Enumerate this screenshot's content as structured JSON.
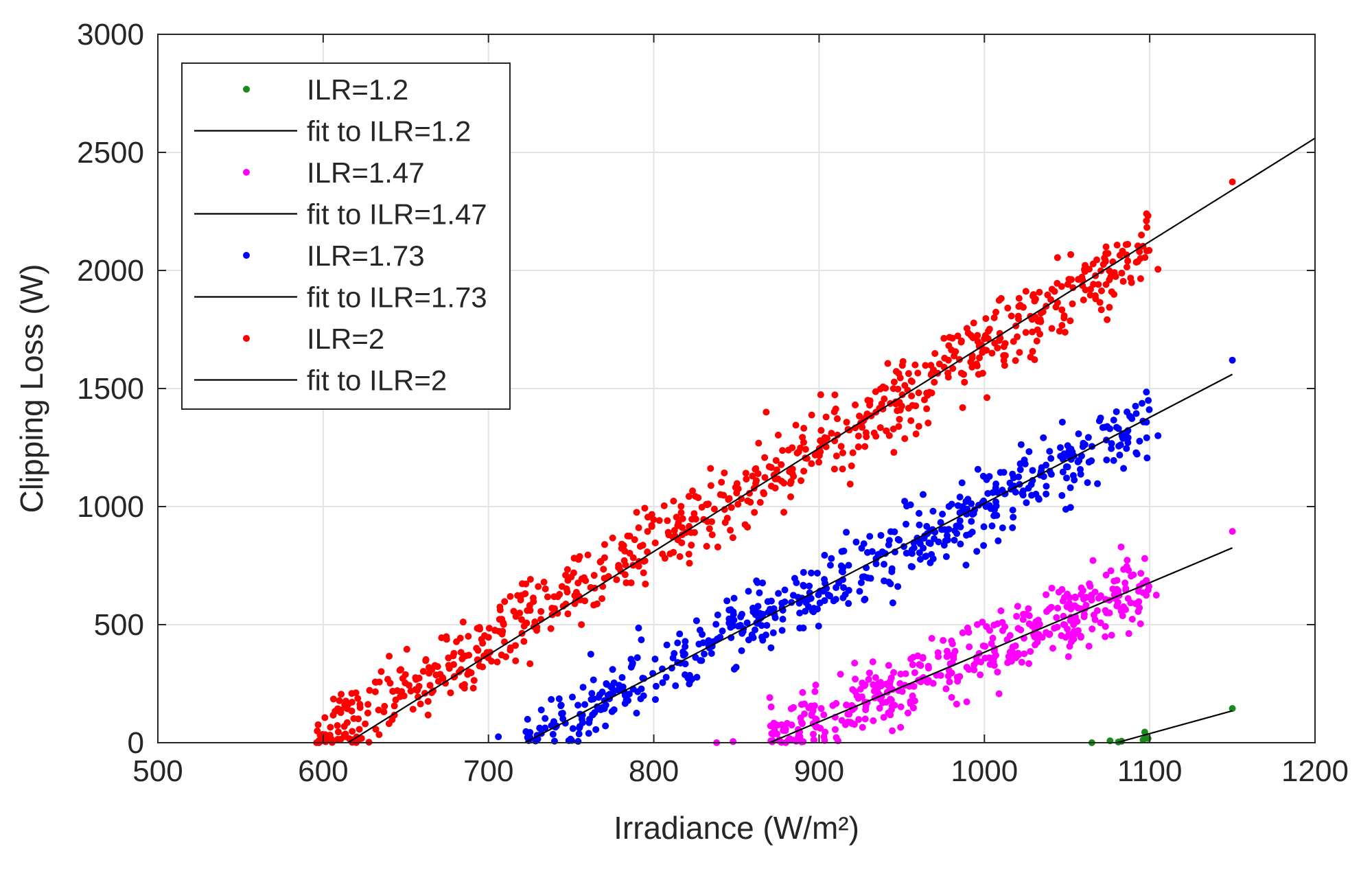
{
  "chart_data": {
    "type": "scatter",
    "xlabel": "Irradiance (W/m²)",
    "ylabel": "Clipping Loss (W)",
    "xlim": [
      500,
      1200
    ],
    "ylim": [
      0,
      3000
    ],
    "xticks": [
      "500",
      "600",
      "700",
      "800",
      "900",
      "1000",
      "1100",
      "1200"
    ],
    "yticks": [
      "0",
      "500",
      "1000",
      "1500",
      "2000",
      "2500",
      "3000"
    ],
    "grid": true,
    "legend_position": "top-left",
    "series": [
      {
        "name": "ILR=1.2",
        "kind": "scatter",
        "color": "#1a8a1a",
        "points": [
          [
            1065,
            0
          ],
          [
            1076,
            8
          ],
          [
            1081,
            3
          ],
          [
            1083,
            6
          ],
          [
            1096,
            12
          ],
          [
            1097,
            45
          ],
          [
            1098,
            22
          ],
          [
            1099,
            18
          ],
          [
            1150,
            145
          ]
        ]
      },
      {
        "name": "fit to ILR=1.2",
        "kind": "line",
        "color": "#000000",
        "x": [
          1080,
          1150
        ],
        "y": [
          0,
          135
        ]
      },
      {
        "name": "ILR=1.47",
        "kind": "scatter",
        "color": "#ff00ff",
        "trend": {
          "x0": 870,
          "x1": 1100,
          "slope": 2.95,
          "noise": 70,
          "count": 420
        },
        "extra_points": [
          [
            1150,
            895
          ],
          [
            1097,
            780
          ],
          [
            1104,
            625
          ],
          [
            838,
            0
          ],
          [
            848,
            5
          ]
        ]
      },
      {
        "name": "fit to ILR=1.47",
        "kind": "line",
        "color": "#000000",
        "x": [
          870,
          1150
        ],
        "y": [
          0,
          825
        ]
      },
      {
        "name": "ILR=1.73",
        "kind": "scatter",
        "color": "#0000ff",
        "trend": {
          "x0": 722,
          "x1": 1100,
          "slope": 3.62,
          "noise": 75,
          "count": 560
        },
        "extra_points": [
          [
            1150,
            1620
          ],
          [
            1105,
            1300
          ],
          [
            1098,
            1485
          ],
          [
            706,
            25
          ]
        ]
      },
      {
        "name": "fit to ILR=1.73",
        "kind": "line",
        "color": "#000000",
        "x": [
          722,
          1150
        ],
        "y": [
          0,
          1560
        ]
      },
      {
        "name": "ILR=2",
        "kind": "scatter",
        "color": "#ff0000",
        "trend": {
          "x0": 596,
          "x1": 1100,
          "slope": 4.12,
          "noise": 80,
          "count": 760
        },
        "extra_points": [
          [
            1150,
            2375
          ],
          [
            1105,
            2005
          ],
          [
            1098,
            2210
          ],
          [
            1095,
            2150
          ],
          [
            868,
            1400
          ],
          [
            596,
            0
          ]
        ]
      },
      {
        "name": "fit to ILR=2",
        "kind": "line",
        "color": "#000000",
        "x": [
          615,
          1200
        ],
        "y": [
          0,
          2560
        ]
      }
    ]
  }
}
